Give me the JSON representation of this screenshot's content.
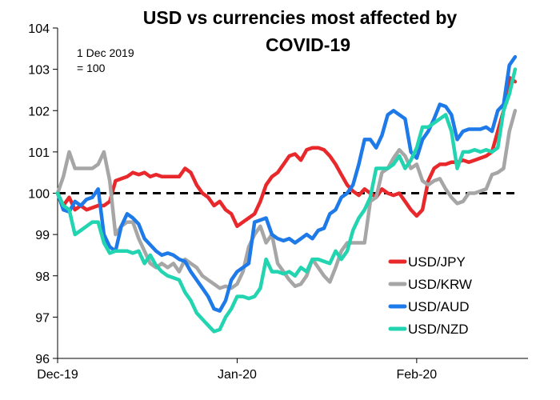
{
  "chart_data": {
    "type": "line",
    "title_line1": "USD vs currencies most affected by",
    "title_line2": "COVID-19",
    "note_line1": "1 Dec 2019",
    "note_line2": "= 100",
    "ylim": [
      96,
      104
    ],
    "y_ticks": [
      "96",
      "97",
      "98",
      "99",
      "100",
      "101",
      "102",
      "103",
      "104"
    ],
    "x_ticks": [
      "Dec-19",
      "Jan-20",
      "Feb-20"
    ],
    "x_tick_days": [
      0,
      31,
      62
    ],
    "x_range_days": [
      0,
      80
    ],
    "reference_line": 100,
    "grid": false,
    "legend_position": "bottom-right",
    "series": [
      {
        "name": "USD/JPY",
        "color": "#e8282b",
        "x": [
          0,
          1,
          2,
          3,
          4,
          5,
          6,
          7,
          8,
          9,
          10,
          11,
          12,
          13,
          14,
          15,
          16,
          17,
          18,
          19,
          20,
          21,
          22,
          23,
          24,
          25,
          26,
          27,
          28,
          29,
          30,
          31,
          32,
          33,
          34,
          35,
          36,
          37,
          38,
          39,
          40,
          41,
          42,
          43,
          44,
          45,
          46,
          47,
          48,
          49,
          50,
          51,
          52,
          53,
          54,
          55,
          56,
          57,
          58,
          59,
          60,
          61,
          62,
          63,
          64,
          65,
          66,
          67,
          68,
          69,
          70,
          71,
          72,
          73,
          74,
          75,
          76,
          77,
          78,
          79
        ],
        "values": [
          100.0,
          99.7,
          99.9,
          99.6,
          99.7,
          99.6,
          99.65,
          99.7,
          99.7,
          99.8,
          100.3,
          100.35,
          100.4,
          100.5,
          100.45,
          100.5,
          100.4,
          100.45,
          100.4,
          100.4,
          100.4,
          100.4,
          100.6,
          100.5,
          100.2,
          100.0,
          99.9,
          99.7,
          99.8,
          99.6,
          99.5,
          99.2,
          99.3,
          99.4,
          99.5,
          99.8,
          100.2,
          100.4,
          100.5,
          100.7,
          100.9,
          100.95,
          100.8,
          101.05,
          101.1,
          101.1,
          101.05,
          100.9,
          100.7,
          100.45,
          100.2,
          100.05,
          99.95,
          100.1,
          100.0,
          99.9,
          100.1,
          100.0,
          99.95,
          100.0,
          99.8,
          99.6,
          99.45,
          99.6,
          100.3,
          100.6,
          100.7,
          100.7,
          100.75,
          100.75,
          100.8,
          100.75,
          100.8,
          100.85,
          100.9,
          101.0,
          101.5,
          102.0,
          102.8,
          102.7
        ]
      },
      {
        "name": "USD/KRW",
        "color": "#a6a6a6",
        "x": [
          0,
          1,
          2,
          3,
          4,
          5,
          6,
          7,
          8,
          9,
          10,
          11,
          12,
          13,
          14,
          15,
          16,
          17,
          18,
          19,
          20,
          21,
          22,
          23,
          24,
          25,
          26,
          27,
          28,
          29,
          30,
          31,
          32,
          33,
          34,
          35,
          36,
          37,
          38,
          39,
          40,
          41,
          42,
          43,
          44,
          45,
          46,
          47,
          48,
          49,
          50,
          51,
          52,
          53,
          54,
          55,
          56,
          57,
          58,
          59,
          60,
          61,
          62,
          63,
          64,
          65,
          66,
          67,
          68,
          69,
          70,
          71,
          72,
          73,
          74,
          75,
          76,
          77,
          78,
          79
        ],
        "values": [
          100.0,
          100.4,
          101.0,
          100.6,
          100.6,
          100.6,
          100.6,
          100.7,
          101.0,
          100.3,
          99.0,
          99.2,
          99.3,
          99.3,
          98.9,
          98.6,
          98.3,
          98.2,
          98.3,
          98.2,
          98.3,
          98.1,
          98.4,
          98.3,
          98.2,
          98.0,
          97.9,
          97.8,
          97.7,
          97.75,
          97.7,
          97.8,
          98.1,
          98.7,
          99.0,
          99.2,
          98.8,
          99.0,
          98.3,
          98.1,
          97.9,
          97.75,
          97.8,
          98.0,
          98.4,
          98.2,
          98.0,
          97.85,
          98.2,
          98.6,
          98.8,
          98.8,
          98.8,
          98.8,
          99.8,
          99.9,
          100.5,
          100.6,
          100.85,
          101.05,
          100.9,
          100.6,
          100.7,
          100.3,
          100.2,
          100.3,
          100.35,
          100.1,
          99.9,
          99.75,
          99.8,
          100.0,
          100.0,
          100.05,
          100.1,
          100.45,
          100.5,
          100.6,
          101.5,
          102.0
        ]
      },
      {
        "name": "USD/AUD",
        "color": "#1e7ae8",
        "x": [
          0,
          1,
          2,
          3,
          4,
          5,
          6,
          7,
          8,
          9,
          10,
          11,
          12,
          13,
          14,
          15,
          16,
          17,
          18,
          19,
          20,
          21,
          22,
          23,
          24,
          25,
          26,
          27,
          28,
          29,
          30,
          31,
          32,
          33,
          34,
          35,
          36,
          37,
          38,
          39,
          40,
          41,
          42,
          43,
          44,
          45,
          46,
          47,
          48,
          49,
          50,
          51,
          52,
          53,
          54,
          55,
          56,
          57,
          58,
          59,
          60,
          61,
          62,
          63,
          64,
          65,
          66,
          67,
          68,
          69,
          70,
          71,
          72,
          73,
          74,
          75,
          76,
          77,
          78,
          79
        ],
        "values": [
          100.0,
          99.6,
          99.55,
          99.8,
          99.7,
          99.85,
          99.9,
          100.1,
          99.0,
          98.7,
          98.6,
          99.2,
          99.5,
          99.4,
          99.25,
          98.9,
          98.75,
          98.6,
          98.5,
          98.55,
          98.5,
          98.4,
          98.35,
          98.1,
          97.9,
          97.7,
          97.5,
          97.2,
          97.15,
          97.4,
          97.9,
          98.1,
          98.2,
          98.3,
          99.3,
          99.35,
          99.4,
          99.0,
          98.9,
          98.85,
          98.9,
          98.8,
          98.9,
          99.0,
          98.9,
          99.1,
          99.15,
          99.5,
          99.6,
          99.9,
          100.0,
          100.2,
          100.7,
          101.3,
          101.3,
          101.1,
          101.4,
          101.9,
          102.0,
          101.9,
          101.8,
          101.0,
          100.85,
          101.3,
          101.5,
          101.8,
          102.15,
          102.1,
          101.9,
          101.3,
          101.5,
          101.55,
          101.55,
          101.55,
          101.6,
          101.5,
          102.0,
          102.15,
          103.1,
          103.3
        ]
      },
      {
        "name": "USD/NZD",
        "color": "#22d4b0",
        "x": [
          0,
          1,
          2,
          3,
          4,
          5,
          6,
          7,
          8,
          9,
          10,
          11,
          12,
          13,
          14,
          15,
          16,
          17,
          18,
          19,
          20,
          21,
          22,
          23,
          24,
          25,
          26,
          27,
          28,
          29,
          30,
          31,
          32,
          33,
          34,
          35,
          36,
          37,
          38,
          39,
          40,
          41,
          42,
          43,
          44,
          45,
          46,
          47,
          48,
          49,
          50,
          51,
          52,
          53,
          54,
          55,
          56,
          57,
          58,
          59,
          60,
          61,
          62,
          63,
          64,
          65,
          66,
          67,
          68,
          69,
          70,
          71,
          72,
          73,
          74,
          75,
          76,
          77,
          78,
          79
        ],
        "values": [
          100.0,
          99.7,
          99.6,
          99.0,
          99.1,
          99.2,
          99.3,
          99.3,
          98.8,
          98.55,
          98.6,
          98.6,
          98.6,
          98.55,
          98.6,
          98.3,
          98.5,
          98.25,
          98.1,
          98.0,
          97.95,
          97.9,
          97.6,
          97.4,
          97.1,
          96.95,
          96.8,
          96.65,
          96.7,
          97.0,
          97.2,
          97.5,
          97.5,
          97.45,
          97.5,
          97.7,
          98.4,
          98.1,
          98.1,
          98.05,
          98.1,
          98.0,
          98.2,
          98.1,
          98.4,
          98.4,
          98.35,
          98.3,
          98.6,
          98.4,
          98.6,
          99.1,
          99.4,
          99.6,
          99.9,
          100.6,
          100.6,
          100.6,
          100.7,
          100.9,
          100.6,
          100.8,
          101.1,
          101.6,
          101.6,
          101.7,
          101.8,
          101.9,
          101.5,
          100.6,
          101.0,
          101.0,
          101.05,
          101.0,
          101.05,
          101.0,
          101.1,
          102.0,
          102.4,
          103.0
        ]
      }
    ]
  }
}
